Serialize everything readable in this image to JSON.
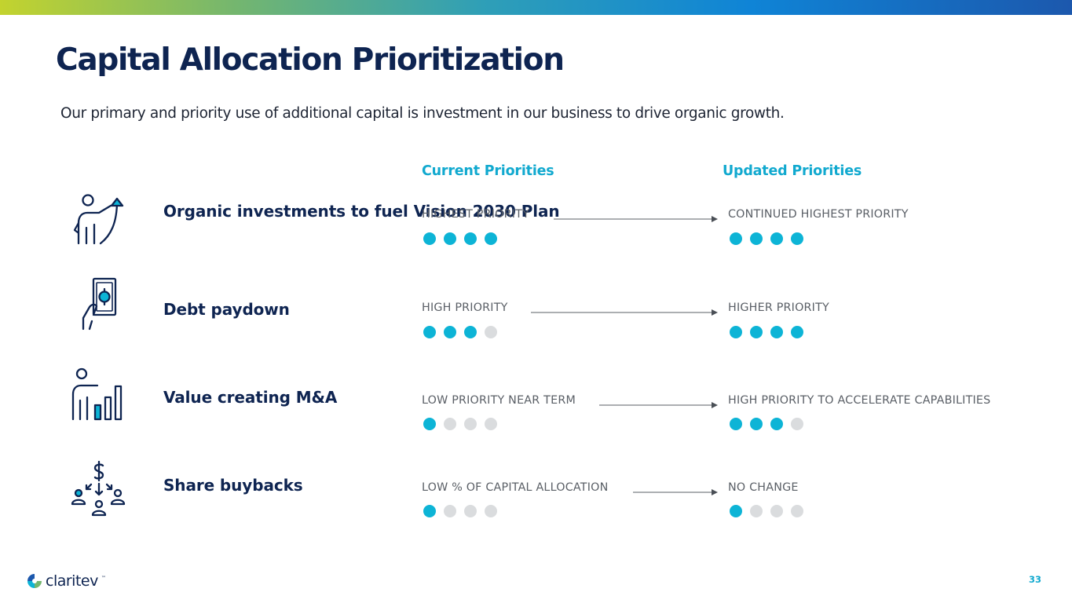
{
  "slide": {
    "title": "Capital Allocation Prioritization",
    "subtitle": "Our primary and priority use of additional capital is investment in our business to drive organic growth.",
    "page_number": "33"
  },
  "columns": {
    "current": "Current Priorities",
    "updated": "Updated Priorities"
  },
  "rows": [
    {
      "icon": "person-growth-arrow-icon",
      "label": "Organic investments to fuel Vision 2030 Plan",
      "current_text": "HIGHEST PRIORITY",
      "current_level": 4,
      "updated_text": "CONTINUED HIGHEST PRIORITY",
      "updated_level": 4
    },
    {
      "icon": "hand-holding-cash-icon",
      "label": "Debt paydown",
      "current_text": "HIGH PRIORITY",
      "current_level": 3,
      "updated_text": "HIGHER PRIORITY",
      "updated_level": 4
    },
    {
      "icon": "person-bar-chart-icon",
      "label": "Value creating M&A",
      "current_text": "LOW PRIORITY NEAR TERM",
      "current_level": 1,
      "updated_text": "HIGH PRIORITY TO ACCELERATE CAPABILITIES",
      "updated_level": 3
    },
    {
      "icon": "dollar-distribution-people-icon",
      "label": "Share buybacks",
      "current_text": "LOW % OF CAPITAL ALLOCATION",
      "current_level": 1,
      "updated_text": "NO CHANGE",
      "updated_level": 1
    }
  ],
  "dots_total": 4,
  "colors": {
    "navy": "#0e2451",
    "accent": "#11a9cf",
    "dot_on": "#0db4d6",
    "dot_off": "#dadcde"
  },
  "logo": {
    "text": "claritev",
    "tm": "™",
    "icon": "claritev-logo-icon"
  }
}
